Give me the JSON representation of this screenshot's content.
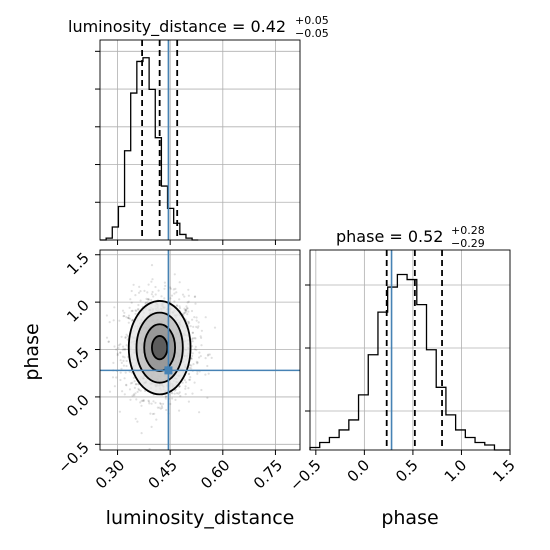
{
  "chart_data": [
    {
      "type": "histogram",
      "panel": "luminosity_distance marginal",
      "title": {
        "main": "luminosity_distance = 0.42",
        "sup": "+0.05",
        "sub": "−0.05"
      },
      "x_range": [
        0.25,
        0.82
      ],
      "x_ticks": [
        0.3,
        0.45,
        0.6,
        0.75
      ],
      "bins": {
        "start": 0.25,
        "width": 0.0175,
        "counts": [
          0,
          1,
          7,
          18,
          48,
          79,
          96,
          98,
          81,
          55,
          29,
          17,
          9,
          3,
          1,
          0
        ]
      },
      "quantiles": [
        0.37,
        0.42,
        0.47
      ],
      "truth": 0.445,
      "y_max": 100
    },
    {
      "type": "histogram",
      "panel": "phase marginal",
      "title": {
        "main": "phase = 0.52",
        "sup": "+0.28",
        "sub": "−0.29"
      },
      "x_range": [
        -0.56,
        1.5
      ],
      "x_ticks": [
        -0.5,
        0.0,
        0.5,
        1.0,
        1.5
      ],
      "x_tick_labels": [
        "−0.5",
        "0.0",
        "0.5",
        "1.0",
        "1.5"
      ],
      "bins": {
        "start": -0.56,
        "width": 0.1,
        "counts": [
          1,
          3,
          5,
          8,
          12,
          22,
          38,
          55,
          65,
          70,
          68,
          58,
          40,
          25,
          14,
          8,
          5,
          3,
          2,
          0,
          0
        ]
      },
      "quantiles": [
        0.23,
        0.52,
        0.8
      ],
      "truth": 0.28,
      "y_max": 75
    },
    {
      "type": "scatter",
      "panel": "2D posterior (contours)",
      "x_range": [
        0.25,
        0.82
      ],
      "y_range": [
        -0.56,
        1.55
      ],
      "xlabel": "luminosity_distance",
      "ylabel": "phase",
      "x_ticks": [
        0.3,
        0.45,
        0.6,
        0.75
      ],
      "y_ticks": [
        -0.5,
        0.0,
        0.5,
        1.0,
        1.5
      ],
      "y_tick_labels": [
        "−0.5",
        "0.0",
        "0.5",
        "1.0",
        "1.5"
      ],
      "center": {
        "x": 0.42,
        "y": 0.52
      },
      "spread": {
        "x": 0.05,
        "y": 0.28
      },
      "contour_sigmas": [
        0.5,
        1.0,
        1.5,
        2.0
      ],
      "truth": {
        "x": 0.445,
        "y": 0.28
      }
    }
  ],
  "labels": {
    "phase_bottom": "phase",
    "lum_bottom": "luminosity_distance",
    "phase_left": "phase"
  },
  "colors": {
    "truth": "#4682b4",
    "hist": "#000000",
    "grid": "#b0b0b0"
  }
}
